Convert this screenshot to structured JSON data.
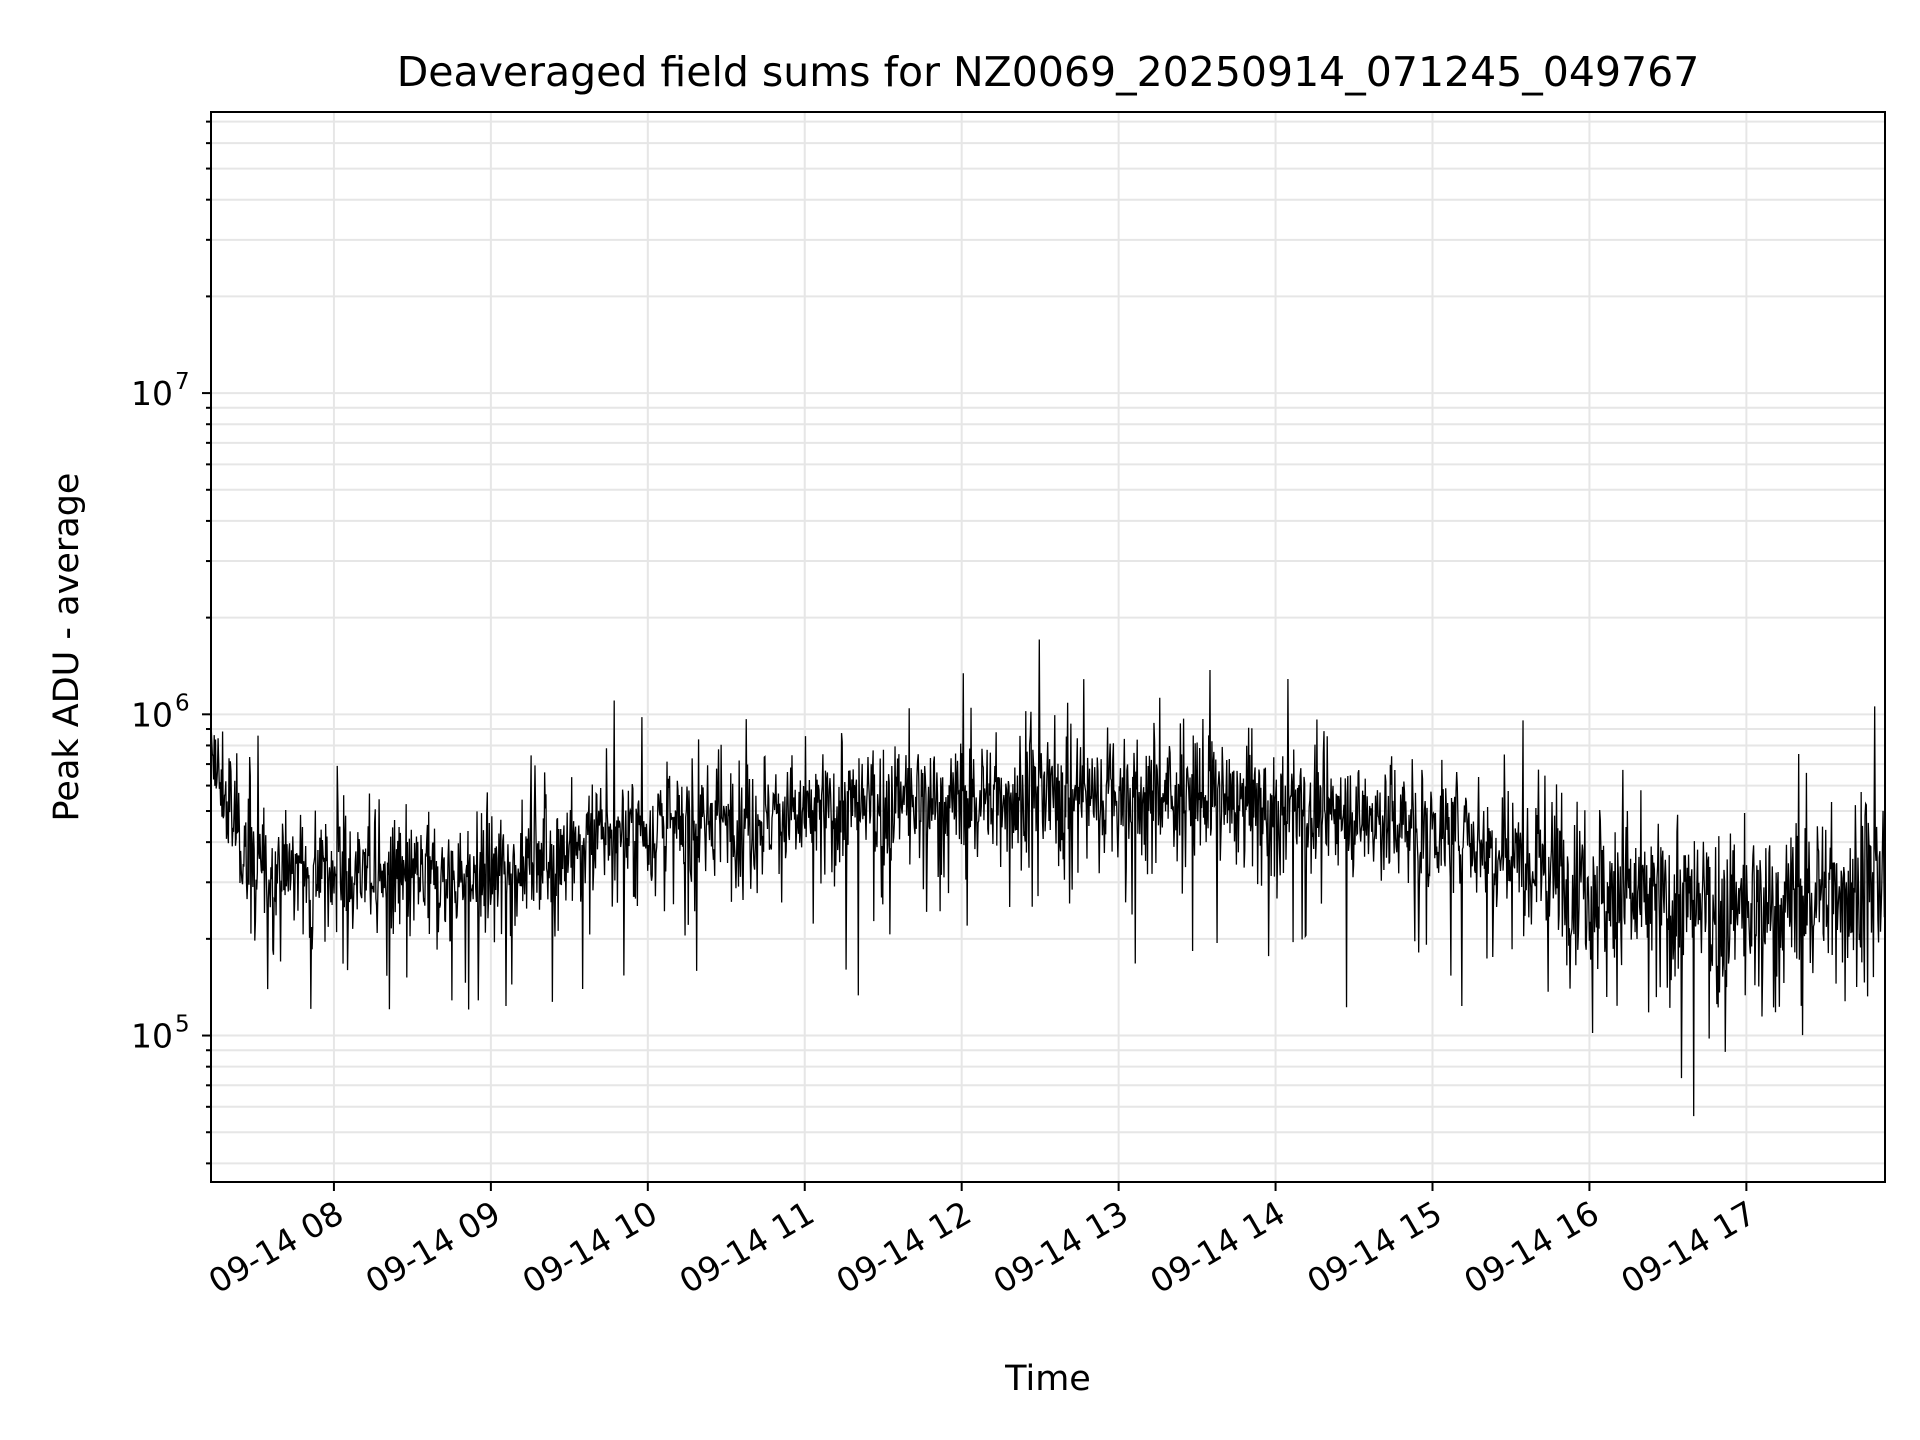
{
  "chart_data": {
    "type": "line",
    "title": "Deaveraged field sums for NZ0069_20250914_071245_049767",
    "xlabel": "Time",
    "ylabel": "Peak ADU - average",
    "yscale": "log",
    "xlim": [
      "2025-09-14 07:13",
      "2025-09-14 17:53"
    ],
    "ylim": [
      35000,
      75000000
    ],
    "grid": true,
    "x_ticks": [
      {
        "value": "2025-09-14 08:00",
        "label": "09-14 08"
      },
      {
        "value": "2025-09-14 09:00",
        "label": "09-14 09"
      },
      {
        "value": "2025-09-14 10:00",
        "label": "09-14 10"
      },
      {
        "value": "2025-09-14 11:00",
        "label": "09-14 11"
      },
      {
        "value": "2025-09-14 12:00",
        "label": "09-14 12"
      },
      {
        "value": "2025-09-14 13:00",
        "label": "09-14 13"
      },
      {
        "value": "2025-09-14 14:00",
        "label": "09-14 14"
      },
      {
        "value": "2025-09-14 15:00",
        "label": "09-14 15"
      },
      {
        "value": "2025-09-14 16:00",
        "label": "09-14 16"
      },
      {
        "value": "2025-09-14 17:00",
        "label": "09-14 17"
      }
    ],
    "y_ticks": [
      {
        "value": 100000,
        "base": "10",
        "exp": "5"
      },
      {
        "value": 1000000,
        "base": "10",
        "exp": "6"
      },
      {
        "value": 10000000,
        "base": "10",
        "exp": "7"
      }
    ],
    "line_color": "#000000",
    "series": [
      {
        "x": [
          "2025-09-14 07:13",
          "2025-09-14 07:30",
          "2025-09-14 08:00",
          "2025-09-14 08:30",
          "2025-09-14 09:00",
          "2025-09-14 09:30",
          "2025-09-14 10:00",
          "2025-09-14 10:30",
          "2025-09-14 11:00",
          "2025-09-14 11:30",
          "2025-09-14 12:00",
          "2025-09-14 12:30",
          "2025-09-14 13:00",
          "2025-09-14 13:30",
          "2025-09-14 14:00",
          "2025-09-14 14:30",
          "2025-09-14 15:00",
          "2025-09-14 15:30",
          "2025-09-14 16:00",
          "2025-09-14 16:30",
          "2025-09-14 17:00",
          "2025-09-14 17:30",
          "2025-09-14 17:53"
        ],
        "values": [
          700000,
          320000,
          330000,
          300000,
          320000,
          380000,
          430000,
          470000,
          480000,
          520000,
          540000,
          560000,
          560000,
          560000,
          520000,
          480000,
          450000,
          380000,
          300000,
          250000,
          240000,
          280000,
          300000
        ]
      }
    ]
  }
}
